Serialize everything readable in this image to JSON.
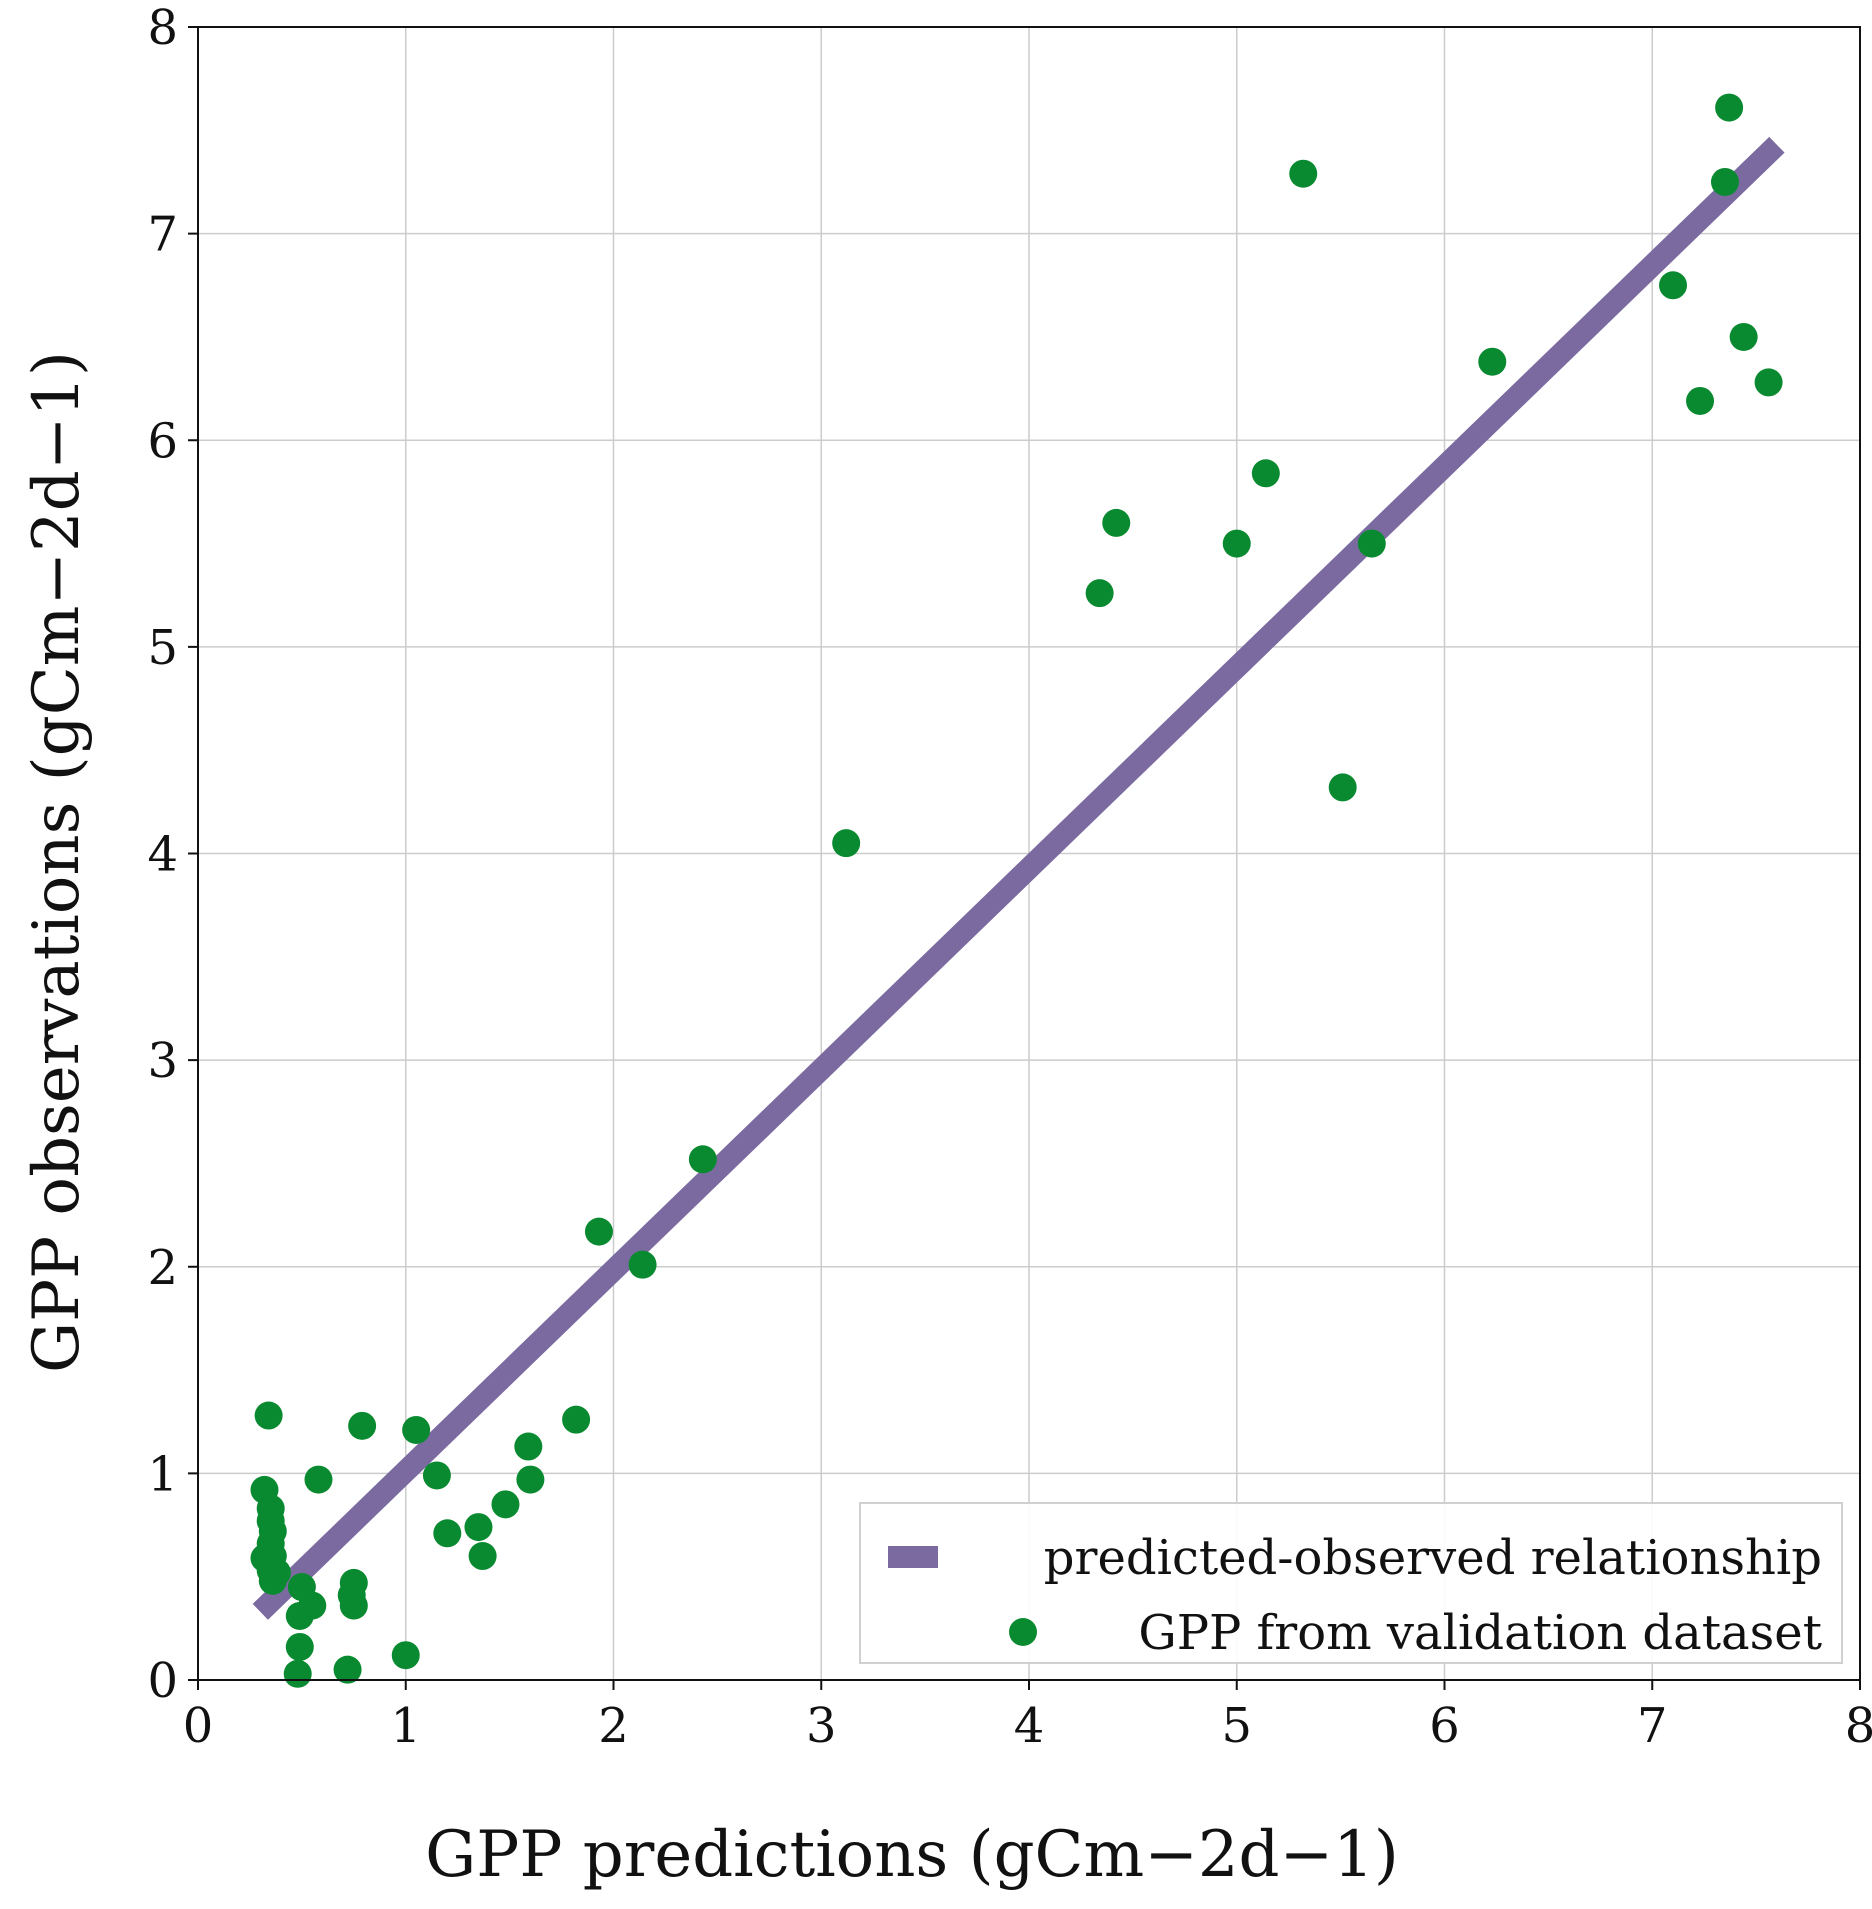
{
  "chart_data": {
    "type": "scatter",
    "title": "",
    "xlabel": "GPP predictions (gCm−2d−1)",
    "ylabel": "GPP observations (gCm−2d−1)",
    "xlim": [
      0,
      8
    ],
    "ylim": [
      0,
      8
    ],
    "xticks": [
      "0",
      "1",
      "2",
      "3",
      "4",
      "5",
      "6",
      "7",
      "8"
    ],
    "yticks": [
      "0",
      "1",
      "2",
      "3",
      "4",
      "5",
      "6",
      "7",
      "8"
    ],
    "grid": true,
    "legend_position": "bottom-right",
    "colors": {
      "line": "#7a6aa0",
      "points": "#0a8a30"
    },
    "series": [
      {
        "name": "predicted-observed relationship",
        "kind": "line",
        "x": [
          0.3,
          7.6
        ],
        "y": [
          0.33,
          7.43
        ]
      },
      {
        "name": "GPP from validation dataset",
        "kind": "scatter",
        "x": [
          0.32,
          0.35,
          0.35,
          0.36,
          0.35,
          0.36,
          0.32,
          0.35,
          0.38,
          0.36,
          0.34,
          0.5,
          0.55,
          0.49,
          0.49,
          0.48,
          0.58,
          0.75,
          0.74,
          0.75,
          0.72,
          0.79,
          1.0,
          1.05,
          1.15,
          1.2,
          1.35,
          1.37,
          1.48,
          1.6,
          1.59,
          1.82,
          1.93,
          2.14,
          2.43,
          3.12,
          4.34,
          4.42,
          5.0,
          5.14,
          5.32,
          5.51,
          5.65,
          6.23,
          7.1,
          7.23,
          7.35,
          7.37,
          7.44,
          7.56
        ],
        "y": [
          0.92,
          0.83,
          0.77,
          0.72,
          0.66,
          0.6,
          0.59,
          0.53,
          0.52,
          0.48,
          1.28,
          0.45,
          0.36,
          0.31,
          0.16,
          0.03,
          0.97,
          0.47,
          0.41,
          0.36,
          0.05,
          1.23,
          0.12,
          1.21,
          0.99,
          0.71,
          0.74,
          0.6,
          0.85,
          0.97,
          1.13,
          1.26,
          2.17,
          2.01,
          2.52,
          4.05,
          5.26,
          5.6,
          5.5,
          5.84,
          7.29,
          4.32,
          5.5,
          6.38,
          6.75,
          6.19,
          7.25,
          7.61,
          6.5,
          6.28
        ]
      }
    ]
  }
}
